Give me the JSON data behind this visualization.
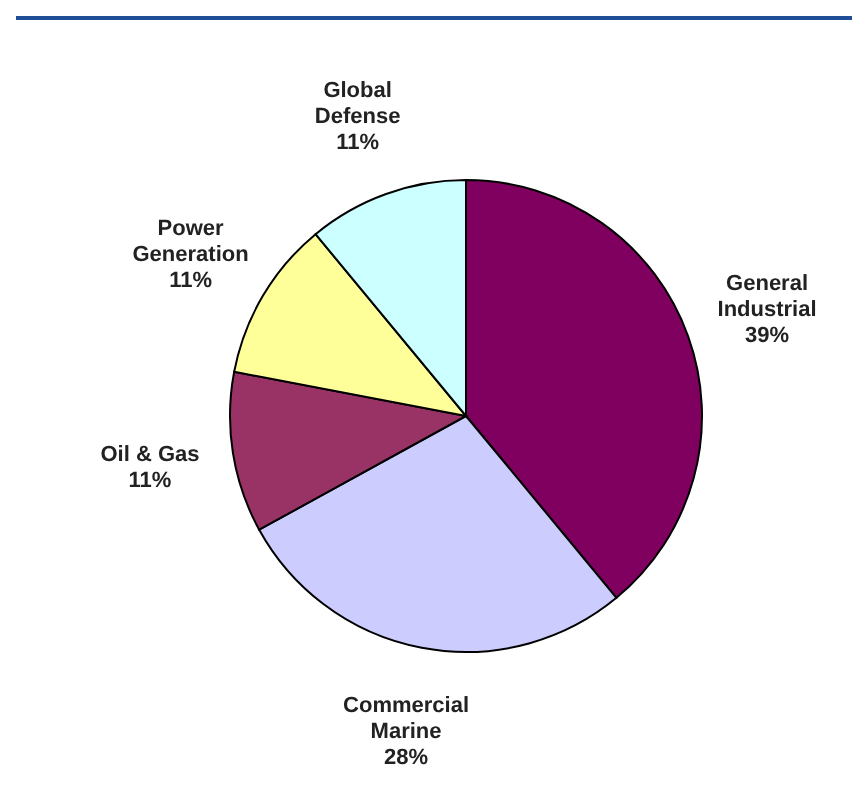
{
  "chart_data": {
    "type": "pie",
    "categories": [
      "General Industrial",
      "Commercial Marine",
      "Oil & Gas",
      "Power Generation",
      "Global Defense"
    ],
    "values": [
      39,
      28,
      11,
      11,
      11
    ],
    "value_labels": [
      "39%",
      "28%",
      "11%",
      "11%",
      "11%"
    ],
    "colors": [
      "#800060",
      "#ccccff",
      "#993366",
      "#ffff99",
      "#ccffff"
    ]
  }
}
